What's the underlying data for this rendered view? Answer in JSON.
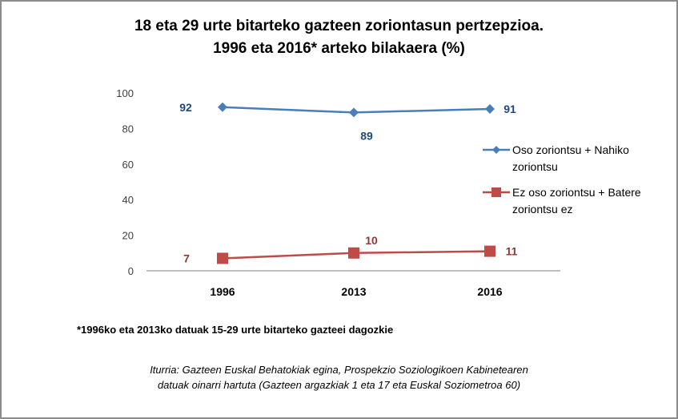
{
  "chart_data": {
    "type": "line",
    "title": [
      "18 eta 29 urte bitarteko gazteen zoriontasun pertzepzioa.",
      "1996 eta 2016* arteko bilakaera (%)"
    ],
    "xlabel": "",
    "ylabel": "",
    "categories": [
      "1996",
      "2013",
      "2016"
    ],
    "ylim": [
      0,
      100
    ],
    "yticks": [
      0,
      20,
      40,
      60,
      80,
      100
    ],
    "grid": false,
    "legend_position": "right",
    "series": [
      {
        "name": "Oso zoriontsu + Nahiko zoriontsu",
        "legend_lines": [
          "Oso zoriontsu + Nahiko",
          "zoriontsu"
        ],
        "values": [
          92,
          89,
          91
        ],
        "labels": [
          "92",
          "89",
          "91"
        ],
        "color": "#4a7ebb",
        "label_color": "#1f497d",
        "marker": "diamond"
      },
      {
        "name": "Ez oso zoriontsu + Batere zoriontsu ez",
        "legend_lines": [
          "Ez oso zoriontsu + Batere",
          "zoriontsu ez"
        ],
        "values": [
          7,
          10,
          11
        ],
        "labels": [
          "7",
          "10",
          "11"
        ],
        "color": "#be4b48",
        "label_color": "#943634",
        "marker": "square"
      }
    ]
  },
  "footnote": "*1996ko eta 2013ko datuak 15-29 urte bitarteko gazteei dagozkie",
  "source": [
    "Iturria: Gazteen Euskal Behatokiak egina, Prospekzio Soziologikoen Kabinetearen",
    "datuak oinarri hartuta (Gazteen argazkiak 1 eta 17 eta Euskal Soziometroa 60)"
  ]
}
